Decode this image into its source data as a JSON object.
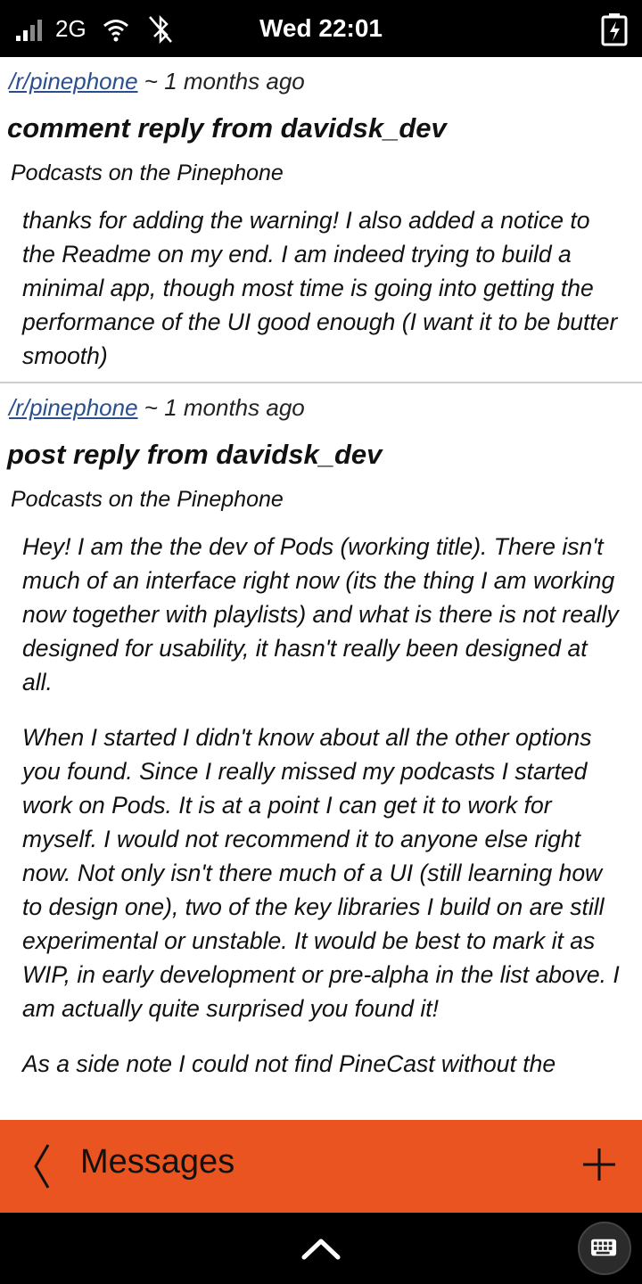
{
  "status_bar": {
    "network": "2G",
    "clock": "Wed 22:01"
  },
  "items": [
    {
      "subreddit": "/r/pinephone",
      "age": " ~ 1 months ago",
      "title": "comment reply from davidsk_dev",
      "context": "Podcasts on the Pinephone",
      "paragraphs": [
        "thanks for adding the warning! I also added a notice to the Readme on my end. I am indeed trying to build a minimal app, though most time is going into getting the performance of the UI good enough (I want it to be butter smooth)"
      ]
    },
    {
      "subreddit": "/r/pinephone",
      "age": " ~ 1 months ago",
      "title": "post reply from davidsk_dev",
      "context": "Podcasts on the Pinephone",
      "paragraphs": [
        "Hey! I am the the dev of Pods (working title). There isn't much of an interface right now (its the thing I am working now together with playlists) and what is there is not really designed for usability, it hasn't really been designed at all.",
        "When I started I didn't know about all the other options you found. Since I really missed my podcasts I started work on Pods. It is at a point I can get it to work for myself. I would not recommend it to anyone else right now. Not only isn't there much of a UI (still learning how to design one), two of the key libraries I build on are still experimental or unstable. It would be best to mark it as WIP, in early development or pre-alpha in the list above. I am actually quite surprised you found it!",
        "As a side note I could not find PineCast without the"
      ]
    }
  ],
  "app_bar": {
    "title": "Messages",
    "accent_color": "#e95420"
  },
  "icons": {
    "signal": "signal-icon",
    "wifi": "wifi-icon",
    "bluetooth": "bluetooth-disabled-icon",
    "battery": "battery-charging-icon",
    "back": "chevron-left-icon",
    "add": "plus-icon",
    "up": "chevron-up-icon",
    "keyboard": "keyboard-icon"
  }
}
